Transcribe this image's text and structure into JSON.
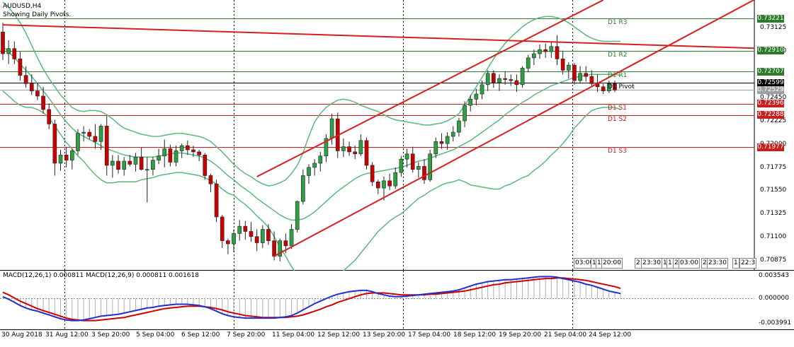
{
  "window": {
    "symbol_title": "AUDUSD,H4",
    "subtitle": "Showing Daily Pivots."
  },
  "colors": {
    "bull_candle": "#2ea043",
    "bear_candle": "#cc0000",
    "bollinger": "#5cb87a",
    "trendline": "#d61f1f",
    "resistance": "#2d7a2d",
    "support": "#c81e1e",
    "macd_main": "#1f2fd0",
    "macd_signal": "#d00000",
    "grid_dotted": "#000000"
  },
  "pivot_levels": [
    {
      "name": "D1 R3",
      "price": 0.73221,
      "tag": "0.73221",
      "color": "#2d7a2d"
    },
    {
      "name": "D1 R2",
      "price": 0.7291,
      "tag": "0.72910",
      "color": "#2d7a2d"
    },
    {
      "name": "D1 R1",
      "price": 0.72707,
      "tag": "0.72707",
      "color": "#2d7a2d"
    },
    {
      "name": "D1 Pivot",
      "price": 0.72599,
      "tag": "0.72599",
      "color": "#000000"
    },
    {
      "name": "D1 S1",
      "price": 0.72396,
      "tag": "0.72396",
      "color": "#c81e1e"
    },
    {
      "name": "D1 S2",
      "price": 0.72288,
      "tag": "0.72288",
      "color": "#c81e1e"
    },
    {
      "name": "D1 S3",
      "price": 0.71977,
      "tag": "0.71977",
      "color": "#c81e1e"
    }
  ],
  "current_bid_tag": "0.72529",
  "price_axis_ticks": [
    "0.73125",
    "0.72900",
    "0.72450",
    "0.72225",
    "0.72000",
    "0.71775",
    "0.71550",
    "0.71325",
    "0.71100",
    "0.70875"
  ],
  "macd": {
    "legend": "MACD(12,26,1) 0.000811 MACD(12,26,9) 0.000811 0.001618",
    "axis_ticks": [
      "0.003543",
      "0.000000",
      "-0.003991"
    ]
  },
  "time_axis_labels": [
    "30 Aug 2018",
    "31 Aug 12:00",
    "3 Sep 20:00",
    "5 Sep 04:00",
    "6 Sep 12:00",
    "7 Sep 20:00",
    "11 Sep 04:00",
    "12 Sep 12:00",
    "13 Sep 20:00",
    "17 Sep 04:00",
    "18 Sep 12:00",
    "19 Sep 20:00",
    "21 Sep 04:00",
    "24 Sep 12:00"
  ],
  "session_boxes": [
    "03:00",
    "1",
    "1",
    "20:00",
    "2",
    "23:30",
    "1",
    "1",
    "21",
    "03:00",
    "2",
    "23:30",
    "1",
    "22:3"
  ],
  "chart_data": {
    "type": "candlestick",
    "symbol": "AUDUSD",
    "timeframe": "H4",
    "ylim": [
      0.7078,
      0.734
    ],
    "candles_ohlc": [
      [
        0.7309,
        0.7318,
        0.7282,
        0.7288
      ],
      [
        0.7288,
        0.7301,
        0.7278,
        0.7293
      ],
      [
        0.7293,
        0.73,
        0.7278,
        0.7283
      ],
      [
        0.7283,
        0.729,
        0.7262,
        0.7267
      ],
      [
        0.7267,
        0.7276,
        0.7255,
        0.7259
      ],
      [
        0.7259,
        0.7268,
        0.7248,
        0.7252
      ],
      [
        0.7252,
        0.726,
        0.7243,
        0.7247
      ],
      [
        0.7247,
        0.7256,
        0.723,
        0.7234
      ],
      [
        0.7234,
        0.724,
        0.7215,
        0.722
      ],
      [
        0.722,
        0.7224,
        0.717,
        0.7182
      ],
      [
        0.7182,
        0.7195,
        0.7175,
        0.719
      ],
      [
        0.719,
        0.7198,
        0.7178,
        0.7185
      ],
      [
        0.7185,
        0.7196,
        0.7176,
        0.7194
      ],
      [
        0.7194,
        0.7215,
        0.719,
        0.7211
      ],
      [
        0.7211,
        0.7218,
        0.7203,
        0.7212
      ],
      [
        0.7212,
        0.7215,
        0.7205,
        0.7208
      ],
      [
        0.7208,
        0.722,
        0.7196,
        0.7203
      ],
      [
        0.7203,
        0.722,
        0.7195,
        0.7218
      ],
      [
        0.7218,
        0.7228,
        0.717,
        0.718
      ],
      [
        0.718,
        0.719,
        0.7168,
        0.7184
      ],
      [
        0.7184,
        0.719,
        0.7172,
        0.7176
      ],
      [
        0.7176,
        0.7188,
        0.717,
        0.7184
      ],
      [
        0.7184,
        0.719,
        0.7179,
        0.7181
      ],
      [
        0.7181,
        0.7192,
        0.7174,
        0.7188
      ],
      [
        0.7188,
        0.7197,
        0.7175,
        0.7176
      ],
      [
        0.7176,
        0.7188,
        0.7144,
        0.7176
      ],
      [
        0.7176,
        0.7188,
        0.717,
        0.7185
      ],
      [
        0.7185,
        0.7196,
        0.7181,
        0.7189
      ],
      [
        0.7189,
        0.7205,
        0.7178,
        0.7196
      ],
      [
        0.7196,
        0.72,
        0.7179,
        0.7183
      ],
      [
        0.7183,
        0.7199,
        0.7179,
        0.7194
      ],
      [
        0.7194,
        0.7201,
        0.7187,
        0.7199
      ],
      [
        0.7199,
        0.7204,
        0.719,
        0.7195
      ],
      [
        0.7195,
        0.7199,
        0.7188,
        0.7193
      ],
      [
        0.7193,
        0.7195,
        0.7184,
        0.719
      ],
      [
        0.719,
        0.7192,
        0.7166,
        0.717
      ],
      [
        0.717,
        0.7172,
        0.7154,
        0.7162
      ],
      [
        0.7162,
        0.7166,
        0.7125,
        0.713
      ],
      [
        0.713,
        0.7132,
        0.71,
        0.7107
      ],
      [
        0.7107,
        0.7109,
        0.7094,
        0.7104
      ],
      [
        0.7104,
        0.7118,
        0.7096,
        0.7114
      ],
      [
        0.7114,
        0.7127,
        0.7107,
        0.7121
      ],
      [
        0.7121,
        0.7126,
        0.7108,
        0.7116
      ],
      [
        0.7116,
        0.7125,
        0.7106,
        0.7111
      ],
      [
        0.7111,
        0.7118,
        0.7097,
        0.7105
      ],
      [
        0.7105,
        0.7122,
        0.71,
        0.7118
      ],
      [
        0.7118,
        0.7123,
        0.7103,
        0.7107
      ],
      [
        0.7107,
        0.7116,
        0.7088,
        0.7092
      ],
      [
        0.7092,
        0.7109,
        0.7087,
        0.7107
      ],
      [
        0.7107,
        0.7114,
        0.7095,
        0.7102
      ],
      [
        0.7102,
        0.7123,
        0.7099,
        0.7118
      ],
      [
        0.7118,
        0.7146,
        0.7115,
        0.7145
      ],
      [
        0.7145,
        0.7176,
        0.7142,
        0.717
      ],
      [
        0.717,
        0.7181,
        0.7162,
        0.7178
      ],
      [
        0.7178,
        0.7186,
        0.717,
        0.7182
      ],
      [
        0.7182,
        0.7193,
        0.7174,
        0.7189
      ],
      [
        0.7189,
        0.721,
        0.7183,
        0.7206
      ],
      [
        0.7206,
        0.723,
        0.72,
        0.7225
      ],
      [
        0.7225,
        0.7231,
        0.7187,
        0.7194
      ],
      [
        0.7194,
        0.7206,
        0.7188,
        0.7198
      ],
      [
        0.7198,
        0.7203,
        0.7189,
        0.7193
      ],
      [
        0.7193,
        0.7199,
        0.7186,
        0.7191
      ],
      [
        0.7191,
        0.721,
        0.7189,
        0.7204
      ],
      [
        0.7204,
        0.7207,
        0.7176,
        0.718
      ],
      [
        0.718,
        0.7183,
        0.716,
        0.7164
      ],
      [
        0.7164,
        0.7166,
        0.7152,
        0.7158
      ],
      [
        0.7158,
        0.7169,
        0.7146,
        0.7165
      ],
      [
        0.7165,
        0.7172,
        0.7156,
        0.716
      ],
      [
        0.716,
        0.7178,
        0.7157,
        0.7173
      ],
      [
        0.7173,
        0.7189,
        0.7169,
        0.7186
      ],
      [
        0.7186,
        0.7196,
        0.7178,
        0.7191
      ],
      [
        0.7191,
        0.7198,
        0.7173,
        0.7176
      ],
      [
        0.7176,
        0.7183,
        0.7168,
        0.7179
      ],
      [
        0.7179,
        0.7186,
        0.7162,
        0.7166
      ],
      [
        0.7166,
        0.7195,
        0.7164,
        0.7191
      ],
      [
        0.7191,
        0.7207,
        0.7187,
        0.7203
      ],
      [
        0.7203,
        0.7211,
        0.7196,
        0.7201
      ],
      [
        0.7201,
        0.7212,
        0.7195,
        0.7208
      ],
      [
        0.7208,
        0.7218,
        0.7203,
        0.7212
      ],
      [
        0.7212,
        0.7226,
        0.7208,
        0.7223
      ],
      [
        0.7223,
        0.7242,
        0.7217,
        0.7238
      ],
      [
        0.7238,
        0.7248,
        0.7232,
        0.7244
      ],
      [
        0.7244,
        0.7254,
        0.7238,
        0.7249
      ],
      [
        0.7249,
        0.7262,
        0.7244,
        0.7258
      ],
      [
        0.7258,
        0.7272,
        0.7252,
        0.7269
      ],
      [
        0.7269,
        0.7272,
        0.7255,
        0.726
      ],
      [
        0.726,
        0.7268,
        0.7252,
        0.7264
      ],
      [
        0.7264,
        0.7271,
        0.7258,
        0.7263
      ],
      [
        0.7263,
        0.7268,
        0.7257,
        0.7262
      ],
      [
        0.7262,
        0.7268,
        0.7251,
        0.7258
      ],
      [
        0.7258,
        0.7276,
        0.7255,
        0.7274
      ],
      [
        0.7274,
        0.7287,
        0.727,
        0.7284
      ],
      [
        0.7284,
        0.7292,
        0.7277,
        0.7288
      ],
      [
        0.7288,
        0.7297,
        0.7283,
        0.7292
      ],
      [
        0.7292,
        0.7298,
        0.7284,
        0.729
      ],
      [
        0.729,
        0.73,
        0.7284,
        0.7295
      ],
      [
        0.7295,
        0.7306,
        0.7277,
        0.7283
      ],
      [
        0.7283,
        0.7291,
        0.7268,
        0.7272
      ],
      [
        0.7272,
        0.728,
        0.7264,
        0.7277
      ],
      [
        0.7277,
        0.7279,
        0.7258,
        0.7262
      ],
      [
        0.7262,
        0.7276,
        0.7259,
        0.7269
      ],
      [
        0.7269,
        0.7276,
        0.7261,
        0.7266
      ],
      [
        0.7266,
        0.7272,
        0.7257,
        0.7259
      ],
      [
        0.7259,
        0.7268,
        0.7251,
        0.7256
      ],
      [
        0.7256,
        0.7259,
        0.7249,
        0.7252
      ],
      [
        0.7252,
        0.7262,
        0.725,
        0.7259
      ],
      [
        0.7259,
        0.7262,
        0.7251,
        0.72529
      ]
    ],
    "bollinger_upper": [
      0.7338,
      0.7333,
      0.7326,
      0.7318,
      0.7308,
      0.7296,
      0.7284,
      0.7273,
      0.7264,
      0.7256,
      0.7248,
      0.7242,
      0.7236,
      0.7233,
      0.7232,
      0.7233,
      0.7233,
      0.7232,
      0.7229,
      0.7225,
      0.722,
      0.7216,
      0.7214,
      0.7212,
      0.721,
      0.7209,
      0.7208,
      0.7208,
      0.7209,
      0.721,
      0.7211,
      0.7211,
      0.721,
      0.7209,
      0.7208,
      0.7206,
      0.7203,
      0.7198,
      0.7193,
      0.7187,
      0.7181,
      0.7176,
      0.7172,
      0.7169,
      0.7165,
      0.7162,
      0.716,
      0.7161,
      0.7163,
      0.7166,
      0.7172,
      0.718,
      0.7192,
      0.7208,
      0.7222,
      0.723,
      0.7236,
      0.724,
      0.7243,
      0.7244,
      0.7243,
      0.7241,
      0.7238,
      0.7236,
      0.7234,
      0.7232,
      0.7229,
      0.7226,
      0.7224,
      0.7223,
      0.7222,
      0.7221,
      0.722,
      0.7219,
      0.7219,
      0.722,
      0.7221,
      0.7223,
      0.7226,
      0.723,
      0.7238,
      0.7247,
      0.7256,
      0.7265,
      0.7274,
      0.7283,
      0.7291,
      0.7298,
      0.7304,
      0.7309,
      0.7314,
      0.7318,
      0.7321,
      0.7323,
      0.7324,
      0.7324,
      0.7323,
      0.7321,
      0.7318,
      0.7314,
      0.731,
      0.7306,
      0.7303,
      0.7301,
      0.73,
      0.73,
      0.73,
      0.73
    ],
    "bollinger_middle": [
      0.7295,
      0.729,
      0.7284,
      0.7278,
      0.7272,
      0.7266,
      0.7259,
      0.7252,
      0.7245,
      0.7237,
      0.7229,
      0.7222,
      0.7216,
      0.7211,
      0.7208,
      0.7205,
      0.7202,
      0.7199,
      0.7196,
      0.7194,
      0.7192,
      0.719,
      0.7189,
      0.7188,
      0.7188,
      0.7188,
      0.7188,
      0.7189,
      0.719,
      0.7191,
      0.7192,
      0.7192,
      0.7191,
      0.719,
      0.7189,
      0.7187,
      0.7184,
      0.718,
      0.7175,
      0.717,
      0.7166,
      0.7161,
      0.7157,
      0.7153,
      0.7148,
      0.7144,
      0.714,
      0.7136,
      0.7132,
      0.7129,
      0.7127,
      0.7127,
      0.7128,
      0.7131,
      0.7135,
      0.714,
      0.7145,
      0.715,
      0.7155,
      0.7159,
      0.7163,
      0.7167,
      0.717,
      0.7172,
      0.7173,
      0.7174,
      0.7175,
      0.7176,
      0.7177,
      0.7178,
      0.718,
      0.7182,
      0.7184,
      0.7185,
      0.7187,
      0.7189,
      0.7191,
      0.7193,
      0.7195,
      0.7198,
      0.7201,
      0.7204,
      0.7208,
      0.7212,
      0.7216,
      0.722,
      0.7224,
      0.7229,
      0.7233,
      0.7237,
      0.7241,
      0.7244,
      0.7248,
      0.7251,
      0.7254,
      0.7257,
      0.7259,
      0.7261,
      0.7263,
      0.7265,
      0.7266,
      0.7267,
      0.7268,
      0.7268,
      0.7268,
      0.7268,
      0.7268,
      0.7267
    ],
    "bollinger_lower": [
      0.7252,
      0.7247,
      0.7242,
      0.7238,
      0.7236,
      0.7236,
      0.7234,
      0.7231,
      0.7226,
      0.7218,
      0.721,
      0.7202,
      0.7196,
      0.7189,
      0.7184,
      0.7177,
      0.7171,
      0.7166,
      0.7163,
      0.7163,
      0.7164,
      0.7164,
      0.7164,
      0.7164,
      0.7166,
      0.7167,
      0.7168,
      0.717,
      0.7171,
      0.7172,
      0.7173,
      0.7173,
      0.7172,
      0.7171,
      0.717,
      0.7168,
      0.7165,
      0.7162,
      0.7157,
      0.7153,
      0.7151,
      0.7146,
      0.7142,
      0.7137,
      0.7131,
      0.7126,
      0.712,
      0.7111,
      0.7101,
      0.7092,
      0.7082,
      0.7074,
      0.7068,
      0.7065,
      0.7065,
      0.7067,
      0.7069,
      0.7071,
      0.7074,
      0.7078,
      0.7083,
      0.7088,
      0.7095,
      0.7102,
      0.7109,
      0.7116,
      0.7121,
      0.7126,
      0.713,
      0.7133,
      0.7138,
      0.7143,
      0.7148,
      0.7151,
      0.7155,
      0.7158,
      0.7161,
      0.7163,
      0.7164,
      0.7166,
      0.7164,
      0.7161,
      0.716,
      0.7159,
      0.7158,
      0.7157,
      0.7157,
      0.716,
      0.7162,
      0.7165,
      0.7168,
      0.717,
      0.7175,
      0.7179,
      0.7184,
      0.719,
      0.7195,
      0.7201,
      0.7208,
      0.7216,
      0.7222,
      0.7228,
      0.7233,
      0.7235,
      0.7236,
      0.7236,
      0.7236,
      0.7234
    ],
    "macd_main": [
      0.0003,
      -0.0001,
      -0.0006,
      -0.0011,
      -0.0015,
      -0.0018,
      -0.002,
      -0.0023,
      -0.0026,
      -0.0029,
      -0.0032,
      -0.0034,
      -0.0035,
      -0.0035,
      -0.0034,
      -0.0032,
      -0.003,
      -0.0028,
      -0.0027,
      -0.0026,
      -0.0025,
      -0.0023,
      -0.0021,
      -0.0019,
      -0.0017,
      -0.0015,
      -0.0014,
      -0.0012,
      -0.0011,
      -0.001,
      -0.0009,
      -0.0009,
      -0.0009,
      -0.001,
      -0.0011,
      -0.0013,
      -0.0016,
      -0.002,
      -0.0024,
      -0.0027,
      -0.0029,
      -0.003,
      -0.0031,
      -0.0031,
      -0.0031,
      -0.0031,
      -0.0031,
      -0.0031,
      -0.003,
      -0.0029,
      -0.0027,
      -0.0023,
      -0.0018,
      -0.0013,
      -0.0008,
      -0.0004,
      0.0,
      0.0004,
      0.0007,
      0.0009,
      0.0011,
      0.0012,
      0.0013,
      0.0013,
      0.0011,
      0.0008,
      0.0006,
      0.0004,
      0.0003,
      0.0003,
      0.0004,
      0.0005,
      0.0006,
      0.0007,
      0.0008,
      0.0009,
      0.001,
      0.0011,
      0.0012,
      0.0014,
      0.0017,
      0.002,
      0.0023,
      0.0025,
      0.0027,
      0.0028,
      0.0029,
      0.003,
      0.003,
      0.0031,
      0.0032,
      0.0033,
      0.0034,
      0.0035,
      0.0035,
      0.0035,
      0.0034,
      0.0032,
      0.003,
      0.0028,
      0.0026,
      0.0023,
      0.0021,
      0.0018,
      0.0015,
      0.0012,
      0.001,
      0.00081
    ],
    "macd_signal": [
      0.001,
      0.0006,
      0.0001,
      -0.0004,
      -0.0008,
      -0.0012,
      -0.0016,
      -0.0019,
      -0.0022,
      -0.0025,
      -0.0028,
      -0.0031,
      -0.0033,
      -0.0034,
      -0.0035,
      -0.0035,
      -0.0035,
      -0.0034,
      -0.0033,
      -0.0032,
      -0.0031,
      -0.003,
      -0.0028,
      -0.0026,
      -0.0024,
      -0.0022,
      -0.002,
      -0.0018,
      -0.0016,
      -0.0015,
      -0.0014,
      -0.0013,
      -0.0012,
      -0.0012,
      -0.0012,
      -0.0013,
      -0.0014,
      -0.0016,
      -0.0018,
      -0.0021,
      -0.0023,
      -0.0025,
      -0.0027,
      -0.0028,
      -0.0029,
      -0.003,
      -0.003,
      -0.003,
      -0.003,
      -0.003,
      -0.0029,
      -0.0028,
      -0.0026,
      -0.0023,
      -0.002,
      -0.0017,
      -0.0013,
      -0.001,
      -0.0006,
      -0.0003,
      0.0,
      0.0003,
      0.0006,
      0.0008,
      0.0009,
      0.0009,
      0.0009,
      0.0008,
      0.0007,
      0.0006,
      0.0006,
      0.0006,
      0.0006,
      0.0006,
      0.0007,
      0.0007,
      0.0008,
      0.0009,
      0.001,
      0.0011,
      0.0012,
      0.0014,
      0.0016,
      0.0018,
      0.002,
      0.0022,
      0.0023,
      0.0025,
      0.0026,
      0.0027,
      0.0028,
      0.0029,
      0.003,
      0.0031,
      0.0032,
      0.0032,
      0.0033,
      0.0033,
      0.0032,
      0.0031,
      0.003,
      0.0029,
      0.0027,
      0.0025,
      0.0023,
      0.0021,
      0.0019,
      0.00162
    ],
    "macd_ylim": [
      -0.003991,
      0.003543
    ],
    "trendlines": [
      {
        "name": "channel-upper",
        "from": [
          44,
          0.7169
        ],
        "to": [
          104,
          0.734
        ]
      },
      {
        "name": "channel-lower",
        "from": [
          47,
          0.7092
        ],
        "to": [
          115,
          0.7295
        ]
      },
      {
        "name": "long-term-resistance",
        "from": [
          0,
          0.7316
        ],
        "to": [
          115,
          0.7296
        ]
      }
    ]
  }
}
